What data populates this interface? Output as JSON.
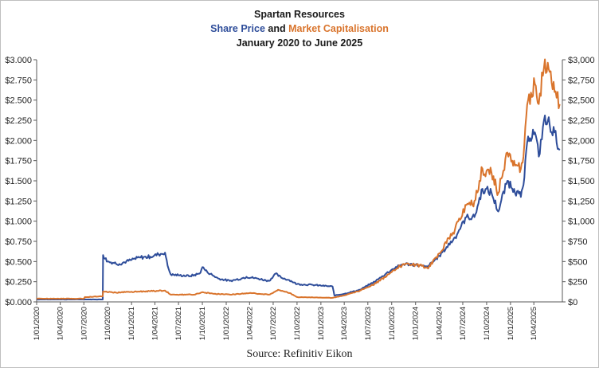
{
  "chart_data": {
    "type": "line",
    "title": "Spartan Resources",
    "subtitle_parts": {
      "series1": "Share Price",
      "joiner": "and",
      "series2": "Market Capitalisation"
    },
    "date_range": "January 2020 to June 2025",
    "source": "Source: Refinitiv Eikon",
    "colors": {
      "share_price": "#2e4d9a",
      "market_cap": "#d9742c"
    },
    "y_left": {
      "min": 0,
      "max": 3.0,
      "ticks": [
        0,
        0.25,
        0.5,
        0.75,
        1.0,
        1.25,
        1.5,
        1.75,
        2.0,
        2.25,
        2.5,
        2.75,
        3.0
      ],
      "tick_labels": [
        "$0.000",
        "$0.250",
        "$0.500",
        "$0.750",
        "$1.000",
        "$1.250",
        "$1.500",
        "$1.750",
        "$2.000",
        "$2.250",
        "$2.500",
        "$2.750",
        "$3.000"
      ]
    },
    "y_right": {
      "min": 0,
      "max": 3000,
      "ticks": [
        0,
        250,
        500,
        750,
        1000,
        1250,
        1500,
        1750,
        2000,
        2250,
        2500,
        2750,
        3000
      ],
      "tick_labels": [
        "$0",
        "$250",
        "$500",
        "$750",
        "$1,000",
        "$1,250",
        "$1,500",
        "$1,750",
        "$2,000",
        "$2,250",
        "$2,500",
        "$2,750",
        "$3,000"
      ]
    },
    "x_range": [
      "2020-01-01",
      "2025-07-20"
    ],
    "x_ticks": [
      "2020-01-01",
      "2020-04-01",
      "2020-07-01",
      "2020-10-01",
      "2021-01-01",
      "2021-04-01",
      "2021-07-01",
      "2021-10-01",
      "2022-01-01",
      "2022-04-01",
      "2022-07-01",
      "2022-10-01",
      "2023-01-01",
      "2023-04-01",
      "2023-07-01",
      "2023-10-01",
      "2024-01-01",
      "2024-04-01",
      "2024-07-01",
      "2024-10-01",
      "2025-01-01",
      "2025-04-01"
    ],
    "x_tick_labels": [
      "1/01/2020",
      "1/04/2020",
      "1/07/2020",
      "1/10/2020",
      "1/01/2021",
      "1/04/2021",
      "1/07/2021",
      "1/10/2021",
      "1/01/2022",
      "1/04/2022",
      "1/07/2022",
      "1/10/2022",
      "1/01/2023",
      "1/04/2023",
      "1/07/2023",
      "1/10/2023",
      "1/01/2024",
      "1/04/2024",
      "1/07/2024",
      "1/10/2024",
      "1/01/2025",
      "1/04/2025"
    ],
    "series": [
      {
        "name": "Share Price",
        "axis": "left",
        "points": [
          [
            "2020-01-01",
            0.03
          ],
          [
            "2020-08-15",
            0.03
          ],
          [
            "2020-09-12",
            0.03
          ],
          [
            "2020-09-13",
            0.58
          ],
          [
            "2020-10-01",
            0.5
          ],
          [
            "2020-11-15",
            0.47
          ],
          [
            "2021-01-01",
            0.52
          ],
          [
            "2021-02-01",
            0.55
          ],
          [
            "2021-03-15",
            0.56
          ],
          [
            "2021-04-15",
            0.59
          ],
          [
            "2021-05-10",
            0.61
          ],
          [
            "2021-05-20",
            0.45
          ],
          [
            "2021-06-01",
            0.34
          ],
          [
            "2021-07-01",
            0.33
          ],
          [
            "2021-08-15",
            0.32
          ],
          [
            "2021-09-20",
            0.35
          ],
          [
            "2021-10-01",
            0.43
          ],
          [
            "2021-10-20",
            0.37
          ],
          [
            "2021-12-01",
            0.29
          ],
          [
            "2022-01-15",
            0.26
          ],
          [
            "2022-03-01",
            0.29
          ],
          [
            "2022-03-20",
            0.31
          ],
          [
            "2022-05-01",
            0.29
          ],
          [
            "2022-06-15",
            0.26
          ],
          [
            "2022-07-10",
            0.35
          ],
          [
            "2022-08-01",
            0.3
          ],
          [
            "2022-09-01",
            0.27
          ],
          [
            "2022-10-01",
            0.22
          ],
          [
            "2022-12-01",
            0.21
          ],
          [
            "2023-02-15",
            0.19
          ],
          [
            "2023-02-22",
            0.08
          ],
          [
            "2023-04-01",
            0.1
          ],
          [
            "2023-06-01",
            0.15
          ],
          [
            "2023-08-01",
            0.26
          ],
          [
            "2023-10-01",
            0.4
          ],
          [
            "2023-11-15",
            0.47
          ],
          [
            "2024-01-01",
            0.46
          ],
          [
            "2024-02-15",
            0.43
          ],
          [
            "2024-04-01",
            0.57
          ],
          [
            "2024-06-01",
            0.8
          ],
          [
            "2024-07-15",
            1.05
          ],
          [
            "2024-08-15",
            1.05
          ],
          [
            "2024-09-15",
            1.4
          ],
          [
            "2024-10-20",
            1.35
          ],
          [
            "2024-11-15",
            1.12
          ],
          [
            "2024-12-20",
            1.5
          ],
          [
            "2025-01-15",
            1.4
          ],
          [
            "2025-02-10",
            1.3
          ],
          [
            "2025-02-20",
            1.45
          ],
          [
            "2025-03-10",
            2.05
          ],
          [
            "2025-04-05",
            2.1
          ],
          [
            "2025-04-20",
            1.8
          ],
          [
            "2025-05-10",
            2.25
          ],
          [
            "2025-06-01",
            2.2
          ],
          [
            "2025-06-20",
            2.1
          ],
          [
            "2025-07-10",
            1.88
          ]
        ]
      },
      {
        "name": "Market Capitalisation",
        "axis": "right",
        "points": [
          [
            "2020-01-01",
            40
          ],
          [
            "2020-07-01",
            40
          ],
          [
            "2020-07-05",
            60
          ],
          [
            "2020-09-12",
            70
          ],
          [
            "2020-09-13",
            130
          ],
          [
            "2020-11-01",
            115
          ],
          [
            "2021-01-01",
            125
          ],
          [
            "2021-05-10",
            140
          ],
          [
            "2021-06-01",
            90
          ],
          [
            "2021-09-01",
            90
          ],
          [
            "2021-10-01",
            120
          ],
          [
            "2021-11-15",
            100
          ],
          [
            "2022-01-15",
            90
          ],
          [
            "2022-04-01",
            110
          ],
          [
            "2022-06-15",
            90
          ],
          [
            "2022-07-20",
            150
          ],
          [
            "2022-09-01",
            110
          ],
          [
            "2022-10-01",
            60
          ],
          [
            "2022-12-01",
            55
          ],
          [
            "2023-02-15",
            50
          ],
          [
            "2023-04-01",
            80
          ],
          [
            "2023-06-01",
            140
          ],
          [
            "2023-08-01",
            230
          ],
          [
            "2023-10-01",
            370
          ],
          [
            "2023-11-15",
            470
          ],
          [
            "2024-01-01",
            460
          ],
          [
            "2024-02-15",
            420
          ],
          [
            "2024-04-01",
            600
          ],
          [
            "2024-06-01",
            900
          ],
          [
            "2024-07-15",
            1200
          ],
          [
            "2024-08-15",
            1250
          ],
          [
            "2024-09-15",
            1650
          ],
          [
            "2024-10-20",
            1600
          ],
          [
            "2024-11-15",
            1350
          ],
          [
            "2024-12-20",
            1850
          ],
          [
            "2025-01-15",
            1750
          ],
          [
            "2025-02-10",
            1650
          ],
          [
            "2025-02-20",
            1800
          ],
          [
            "2025-03-10",
            2500
          ],
          [
            "2025-04-05",
            2700
          ],
          [
            "2025-04-20",
            2450
          ],
          [
            "2025-05-10",
            2900
          ],
          [
            "2025-06-01",
            2850
          ],
          [
            "2025-06-20",
            2600
          ],
          [
            "2025-07-10",
            2450
          ]
        ]
      }
    ],
    "grid": false,
    "legend": "none"
  }
}
